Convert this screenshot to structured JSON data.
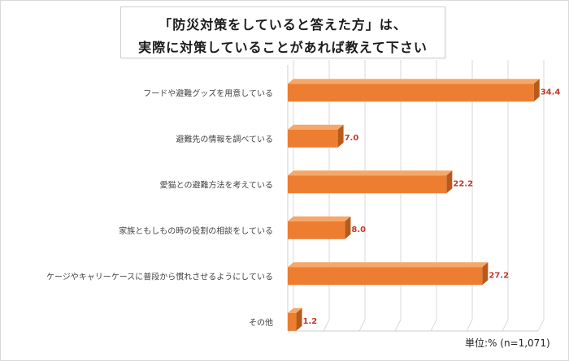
{
  "title_lines": [
    "「防災対策をしていると答えた方」は、",
    "実際に対策していることがあれば教えて下さい"
  ],
  "unit_note": "単位:% (n=1,071)",
  "colors": {
    "bar_front": "#ED7D31",
    "bar_top": "#F6A868",
    "bar_side": "#B85A1C",
    "value_label": "#C0392B",
    "grid": "#D9D9D9"
  },
  "chart_data": {
    "type": "bar",
    "orientation": "horizontal",
    "title": "「防災対策をしていると答えた方」は、実際に対策していることがあれば教えて下さい",
    "categories": [
      "フードや避難グッズを用意している",
      "避難先の情報を調べている",
      "愛猫との避難方法を考えている",
      "家族ともしもの時の役割の相談をしている",
      "ケージやキャリーケースに普段から慣れさせるようにしている",
      "その他"
    ],
    "values": [
      34.4,
      7.0,
      22.2,
      8.0,
      27.2,
      1.2
    ],
    "value_labels": [
      "34.4",
      "7.0",
      "22.2",
      "8.0",
      "27.2",
      "1.2"
    ],
    "xlim": [
      0,
      35
    ],
    "grid": true,
    "style": "3d",
    "unit": "%"
  }
}
